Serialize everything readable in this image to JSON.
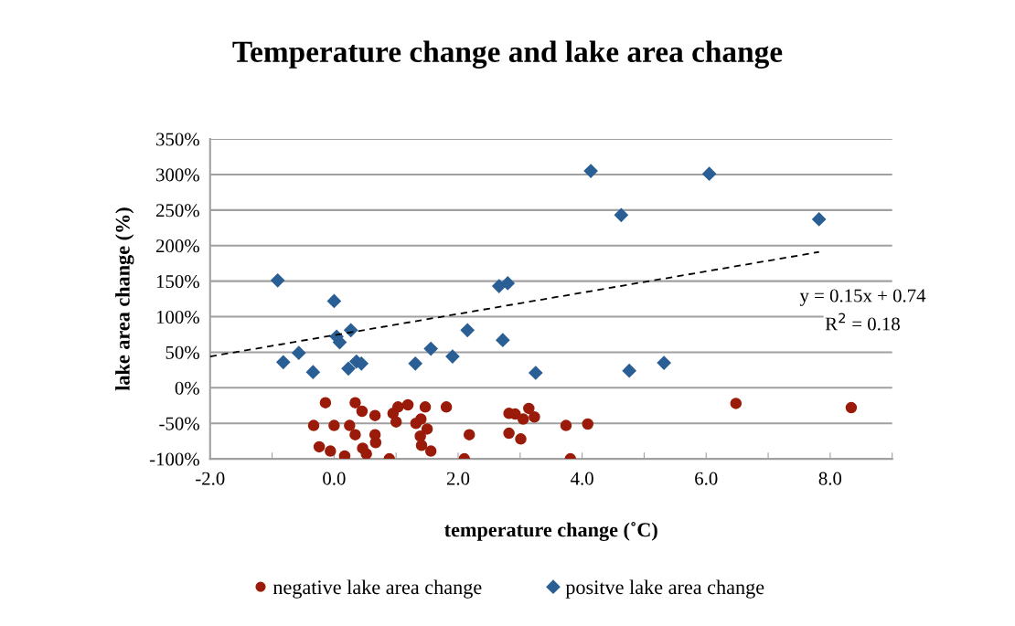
{
  "chart_data": {
    "type": "scatter",
    "title": "Temperature change and lake area change",
    "xlabel": "temperature change (˚C)",
    "ylabel": "lake area change (%)",
    "xlim": [
      -2,
      9
    ],
    "xticks": [
      {
        "value": -2,
        "label": "-2.0"
      },
      {
        "value": -1,
        "label": null
      },
      {
        "value": 0,
        "label": "0.0"
      },
      {
        "value": 1,
        "label": null
      },
      {
        "value": 2,
        "label": "2.0"
      },
      {
        "value": 3,
        "label": null
      },
      {
        "value": 4,
        "label": "4.0"
      },
      {
        "value": 5,
        "label": null
      },
      {
        "value": 6,
        "label": "6.0"
      },
      {
        "value": 7,
        "label": null
      },
      {
        "value": 8,
        "label": "8.0"
      },
      {
        "value": 9,
        "label": null
      }
    ],
    "ylim": [
      -1,
      3.5
    ],
    "yticks": [
      {
        "value": -1,
        "label": "-100%"
      },
      {
        "value": -0.5,
        "label": "-50%"
      },
      {
        "value": 0,
        "label": "0%"
      },
      {
        "value": 0.5,
        "label": "50%"
      },
      {
        "value": 1,
        "label": "100%"
      },
      {
        "value": 1.5,
        "label": "150%"
      },
      {
        "value": 2,
        "label": "200%"
      },
      {
        "value": 2.5,
        "label": "250%"
      },
      {
        "value": 3,
        "label": "300%"
      },
      {
        "value": 3.5,
        "label": "350%"
      }
    ],
    "grid": "y",
    "legend": "bottom",
    "series": [
      {
        "name": "negative lake area change",
        "color": "#9b1b0a",
        "marker": "circle",
        "x": [
          -0.14,
          -0.33,
          -0.24,
          -0.06,
          0.0,
          0.17,
          0.25,
          0.34,
          0.34,
          0.45,
          0.46,
          0.52,
          0.66,
          0.66,
          0.67,
          0.89,
          0.9,
          0.95,
          1.0,
          1.03,
          1.19,
          1.32,
          1.4,
          1.47,
          1.5,
          1.39,
          1.41,
          1.56,
          1.81,
          2.1,
          2.18,
          2.82,
          2.92,
          3.05,
          3.14,
          3.23,
          2.82,
          3.01,
          3.74,
          4.09,
          3.81,
          6.48,
          8.34
        ],
        "values": [
          -0.21,
          -0.53,
          -0.83,
          -0.89,
          -0.53,
          -0.96,
          -0.53,
          -0.21,
          -0.66,
          -0.33,
          -0.85,
          -0.93,
          -0.39,
          -0.66,
          -0.77,
          -1.0,
          null,
          -0.36,
          -0.48,
          -0.27,
          -0.24,
          -0.5,
          -0.44,
          -0.27,
          -0.58,
          -0.68,
          -0.81,
          -0.89,
          -0.27,
          -1.0,
          -0.66,
          -0.36,
          -0.37,
          -0.44,
          -0.29,
          -0.41,
          -0.64,
          -0.72,
          -0.53,
          -0.51,
          -1.0,
          -0.22,
          -0.28
        ]
      },
      {
        "name": "positve lake area change",
        "color": "#2a5f95",
        "marker": "diamond",
        "x": [
          -0.91,
          -0.82,
          -0.57,
          -0.34,
          0.0,
          0.04,
          0.09,
          0.27,
          0.23,
          0.36,
          0.44,
          1.31,
          1.56,
          1.91,
          2.15,
          2.66,
          2.8,
          2.72,
          3.25,
          4.14,
          4.63,
          6.05,
          7.82,
          4.76,
          5.32
        ],
        "values": [
          1.51,
          0.36,
          0.49,
          0.22,
          1.22,
          0.72,
          0.64,
          0.81,
          0.27,
          0.37,
          0.34,
          0.34,
          0.55,
          0.44,
          0.81,
          1.43,
          1.47,
          0.67,
          0.21,
          3.05,
          2.43,
          3.01,
          2.37,
          0.24,
          0.35
        ]
      },
      {
        "type": "line",
        "color": "#000000",
        "line_style": "dashed",
        "marker": "none",
        "x": [
          -2,
          7.82
        ],
        "values": [
          0.44,
          1.91
        ]
      }
    ],
    "annotations": [
      "y = 0.15x + 0.74",
      "R$^{2}$ = 0.18"
    ]
  }
}
